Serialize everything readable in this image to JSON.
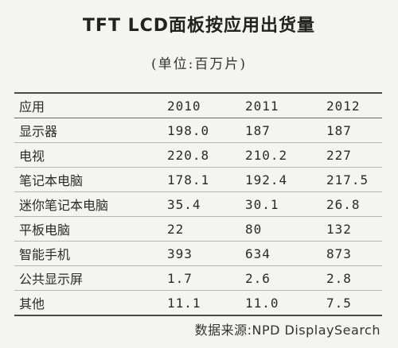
{
  "chart_data": {
    "type": "table",
    "title": "TFT LCD面板按应用出货量",
    "subtitle": "(单位:百万片)",
    "columns": [
      "应用",
      "2010",
      "2011",
      "2012"
    ],
    "rows": [
      [
        "显示器",
        "198.0",
        "187",
        "187"
      ],
      [
        "电视",
        "220.8",
        "210.2",
        "227"
      ],
      [
        "笔记本电脑",
        "178.1",
        "192.4",
        "217.5"
      ],
      [
        "迷你笔记本电脑",
        "35.4",
        "30.1",
        "26.8"
      ],
      [
        "平板电脑",
        "22",
        "80",
        "132"
      ],
      [
        "智能手机",
        "393",
        "634",
        "873"
      ],
      [
        "公共显示屏",
        "1.7",
        "2.6",
        "2.8"
      ],
      [
        "其他",
        "11.1",
        "11.0",
        "7.5"
      ]
    ],
    "source": "数据来源:NPD DisplaySearch"
  }
}
